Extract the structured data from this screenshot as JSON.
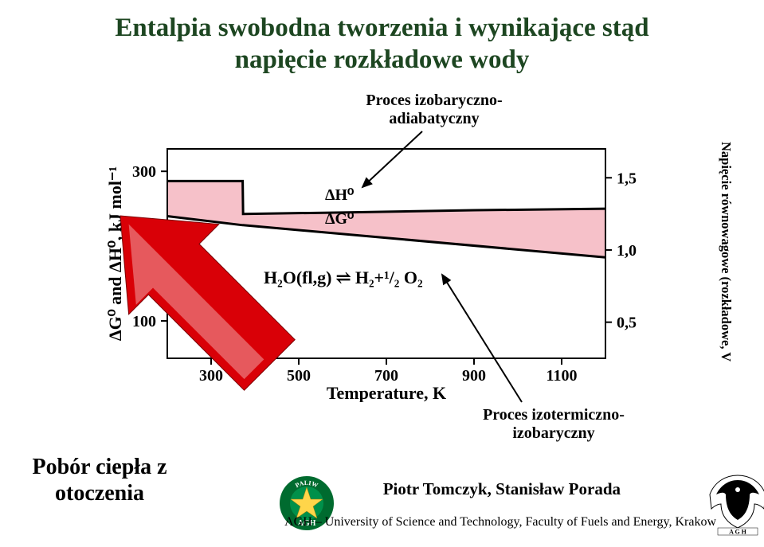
{
  "title_line1": "Entalpia swobodna tworzenia i wynikające stąd",
  "title_line2": "napięcie rozkładowe wody",
  "process1_line1": "Proces izobaryczno-",
  "process1_line2": "adiabatyczny",
  "process2_line1": "Proces izotermiczno-",
  "process2_line2": "izobaryczny",
  "heat_intake_line1": "Pobór ciepła z",
  "heat_intake_line2": "otoczenia",
  "right_axis_label": "Napięcie równowagowe (rozkładowe, V",
  "footer_names": "Piotr Tomczyk, Stanisław Porada",
  "footer_institution": "AGH – University of Science and Technology, Faculty of Fuels and Energy, Krakow",
  "chart": {
    "type": "line",
    "x_label": "Temperature, K",
    "y_label_left": "ΔG⁰ and ΔH⁰, kJ mol⁻¹",
    "x_range": [
      200,
      1200
    ],
    "x_ticks": [
      300,
      500,
      700,
      900,
      1100
    ],
    "y_left_range": [
      50,
      330
    ],
    "y_left_ticks": [
      100,
      200,
      300
    ],
    "y_right_range": [
      0.25,
      1.7
    ],
    "y_right_ticks": [
      0.5,
      1.0,
      1.5
    ],
    "dH_label": "ΔH⁰",
    "dG_label": "ΔG⁰",
    "reaction_label": "H₂O(fl,g) ⇌ H₂+¹/₂ O₂",
    "dH_series": [
      {
        "x": 200,
        "y": 287
      },
      {
        "x": 372,
        "y": 287
      },
      {
        "x": 373,
        "y": 243
      },
      {
        "x": 600,
        "y": 245
      },
      {
        "x": 900,
        "y": 248
      },
      {
        "x": 1200,
        "y": 250
      }
    ],
    "dG_series": [
      {
        "x": 200,
        "y": 240
      },
      {
        "x": 372,
        "y": 228
      },
      {
        "x": 373,
        "y": 228
      },
      {
        "x": 700,
        "y": 211
      },
      {
        "x": 1200,
        "y": 185
      }
    ],
    "fill_color": "#f6c1c9",
    "line_color": "#000000",
    "axis_color": "#000000",
    "font_size_axis": 20,
    "font_size_label": 22,
    "line_width": 3,
    "shade_opacity": 1.0
  },
  "big_arrow": {
    "fill": "#d90007",
    "gloss": "#ffffff"
  },
  "logo_fuel": {
    "outer": "#006b2f",
    "star": "#ffd54a",
    "text": "PALIW"
  },
  "logo_agh": {
    "shield": "#ffffff",
    "eagle": "#000000",
    "letters": "AGH"
  }
}
